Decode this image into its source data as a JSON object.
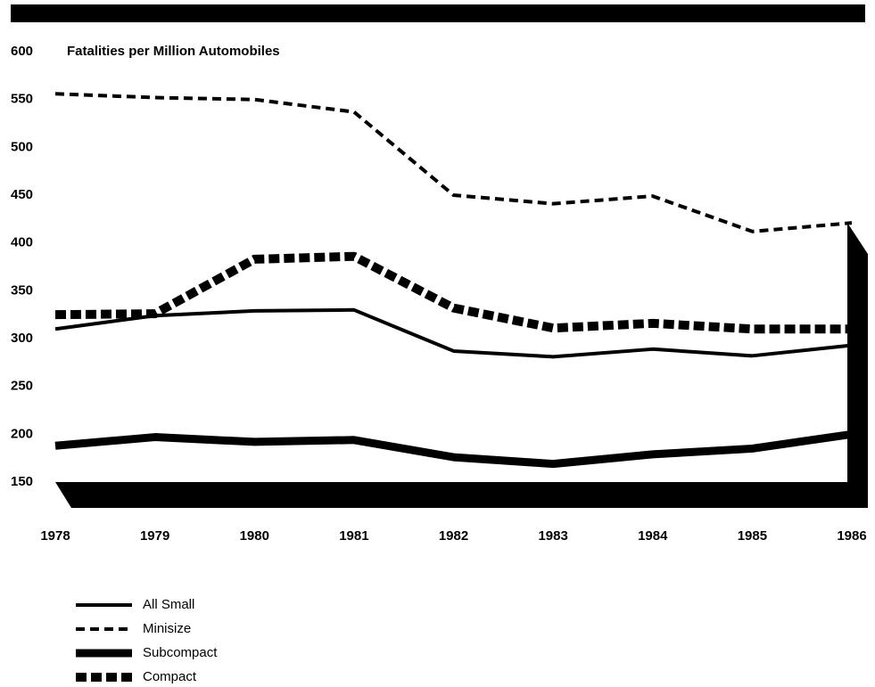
{
  "chart_data": {
    "type": "line",
    "title": "Fatalities per Million Automobiles",
    "categories": [
      "1978",
      "1979",
      "1980",
      "1981",
      "1982",
      "1983",
      "1984",
      "1985",
      "1986"
    ],
    "series": [
      {
        "name": "All Small",
        "color": "#000000",
        "line_width": 4,
        "dash": "none",
        "values": [
          310,
          324,
          329,
          330,
          287,
          281,
          289,
          282,
          293
        ]
      },
      {
        "name": "Minisize",
        "color": "#000000",
        "line_width": 4,
        "dash": "10 6",
        "values": [
          556,
          552,
          550,
          537,
          450,
          441,
          449,
          412,
          421
        ]
      },
      {
        "name": "Subcompact",
        "color": "#000000",
        "line_width": 9,
        "dash": "none",
        "values": [
          188,
          197,
          192,
          194,
          176,
          169,
          179,
          185,
          200
        ]
      },
      {
        "name": "Compact",
        "color": "#000000",
        "line_width": 10,
        "dash": "12 5",
        "values": [
          325,
          326,
          383,
          386,
          332,
          311,
          316,
          310,
          310
        ]
      }
    ],
    "ylim": [
      150,
      600
    ],
    "yticks": [
      150,
      200,
      250,
      300,
      350,
      400,
      450,
      500,
      550,
      600
    ]
  }
}
